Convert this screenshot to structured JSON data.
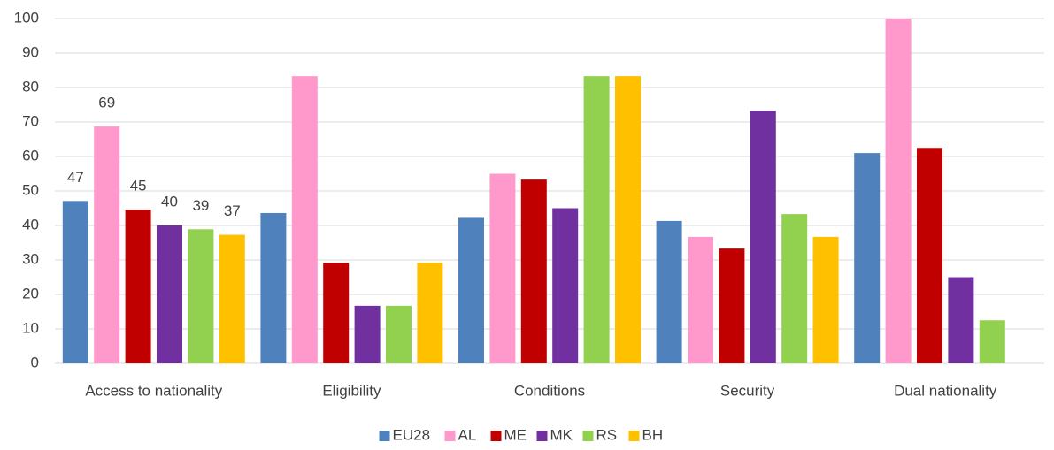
{
  "chart_data": {
    "type": "bar",
    "categories": [
      "Access to nationality",
      "Eligibility",
      "Conditions",
      "Security",
      "Dual nationality"
    ],
    "series": [
      {
        "name": "EU28",
        "color": "#4f81bd",
        "values": [
          47.1,
          43.6,
          42.2,
          41.3,
          61
        ],
        "value_labels": [
          "47",
          null,
          null,
          null,
          null
        ]
      },
      {
        "name": "AL",
        "color": "#ff99cc",
        "values": [
          68.7,
          83.3,
          55,
          36.7,
          100
        ],
        "value_labels": [
          "69",
          null,
          null,
          null,
          null
        ]
      },
      {
        "name": "ME",
        "color": "#c00000",
        "values": [
          44.6,
          29.2,
          53.3,
          33.3,
          62.5
        ],
        "value_labels": [
          "45",
          null,
          null,
          null,
          null
        ]
      },
      {
        "name": "MK",
        "color": "#7030a0",
        "values": [
          40,
          16.7,
          45,
          73.3,
          25
        ],
        "value_labels": [
          "40",
          null,
          null,
          null,
          null
        ]
      },
      {
        "name": "RS",
        "color": "#92d050",
        "values": [
          38.9,
          16.7,
          83.3,
          43.3,
          12.5
        ],
        "value_labels": [
          "39",
          null,
          null,
          null,
          null
        ]
      },
      {
        "name": "BH",
        "color": "#ffc000",
        "values": [
          37.3,
          29.2,
          83.3,
          36.7,
          null
        ],
        "value_labels": [
          "37",
          null,
          null,
          null,
          null
        ]
      }
    ],
    "ylim": [
      0,
      100
    ],
    "yticks": [
      0,
      10,
      20,
      30,
      40,
      50,
      60,
      70,
      80,
      90,
      100
    ],
    "grid": true,
    "legend": "bottom"
  }
}
